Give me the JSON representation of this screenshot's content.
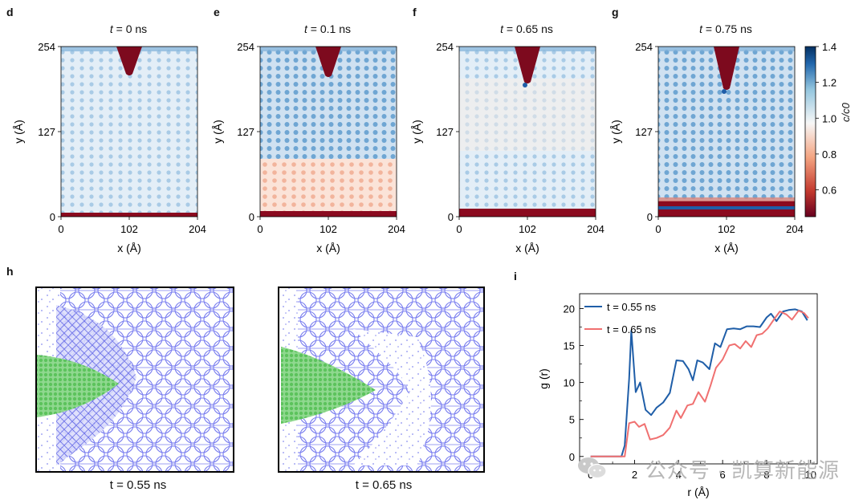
{
  "heatmaps": {
    "panels": [
      {
        "label": "d",
        "time": "0",
        "unit": "ns"
      },
      {
        "label": "e",
        "time": "0.1",
        "unit": "ns"
      },
      {
        "label": "f",
        "time": "0.65",
        "unit": "ns"
      },
      {
        "label": "g",
        "time": "0.75",
        "unit": "ns"
      }
    ],
    "time_symbol": "t",
    "xticks": [
      "0",
      "102",
      "204"
    ],
    "yticks": [
      "0",
      "127",
      "254"
    ],
    "xlabel": "x (Å)",
    "ylabel": "y (Å)",
    "colorbar": {
      "ticks": [
        "1.4",
        "1.2",
        "1.0",
        "0.8",
        "0.6"
      ],
      "label": "c/c0",
      "min": 0.45,
      "max": 1.4
    }
  },
  "snapshots": {
    "label": "h",
    "captions": [
      "t = 0.55 ns",
      "t = 0.65 ns"
    ],
    "colors": {
      "lattice": "#7b7ff0",
      "particles": "#7bd67b"
    }
  },
  "rdf_label": "i",
  "watermark": "公众号 · 凯算新能源",
  "chart_data": [
    {
      "type": "heatmap",
      "panel": "d",
      "title": "t = 0 ns",
      "xlabel": "x (Å)",
      "ylabel": "y (Å)",
      "xlim": [
        0,
        204
      ],
      "ylim": [
        0,
        254
      ],
      "color_scale": "c/c0",
      "clim": [
        0.45,
        1.4
      ]
    },
    {
      "type": "heatmap",
      "panel": "e",
      "title": "t = 0.1 ns",
      "xlabel": "x (Å)",
      "ylabel": "y (Å)",
      "xlim": [
        0,
        204
      ],
      "ylim": [
        0,
        254
      ],
      "color_scale": "c/c0",
      "clim": [
        0.45,
        1.4
      ]
    },
    {
      "type": "heatmap",
      "panel": "f",
      "title": "t = 0.65 ns",
      "xlabel": "x (Å)",
      "ylabel": "y (Å)",
      "xlim": [
        0,
        204
      ],
      "ylim": [
        0,
        254
      ],
      "color_scale": "c/c0",
      "clim": [
        0.45,
        1.4
      ]
    },
    {
      "type": "heatmap",
      "panel": "g",
      "title": "t = 0.75 ns",
      "xlabel": "x (Å)",
      "ylabel": "y (Å)",
      "xlim": [
        0,
        204
      ],
      "ylim": [
        0,
        254
      ],
      "color_scale": "c/c0",
      "clim": [
        0.45,
        1.4
      ]
    },
    {
      "type": "line",
      "panel": "i",
      "xlabel": "r (Å)",
      "ylabel": "g (r)",
      "xlim": [
        -0.5,
        10.3
      ],
      "ylim": [
        -1,
        22
      ],
      "xticks": [
        "0",
        "2",
        "4",
        "6",
        "8",
        "10"
      ],
      "yticks": [
        "0",
        "5",
        "10",
        "15",
        "20"
      ],
      "legend": "top-left",
      "series": [
        {
          "name": "t = 0.55 ns",
          "color": "#1f5ea8",
          "points": [
            [
              0,
              0
            ],
            [
              1.0,
              0
            ],
            [
              1.4,
              0
            ],
            [
              1.55,
              1.5
            ],
            [
              1.75,
              10.5
            ],
            [
              1.85,
              17
            ],
            [
              2.05,
              8.7
            ],
            [
              2.25,
              10
            ],
            [
              2.5,
              6.3
            ],
            [
              2.75,
              5.6
            ],
            [
              3.0,
              6.6
            ],
            [
              3.3,
              7.3
            ],
            [
              3.6,
              8.6
            ],
            [
              3.9,
              13
            ],
            [
              4.2,
              12.9
            ],
            [
              4.45,
              11.8
            ],
            [
              4.65,
              10.3
            ],
            [
              4.85,
              13
            ],
            [
              5.1,
              12.7
            ],
            [
              5.4,
              11.8
            ],
            [
              5.65,
              15.3
            ],
            [
              5.9,
              14.8
            ],
            [
              6.2,
              17.2
            ],
            [
              6.5,
              17.3
            ],
            [
              6.8,
              17.2
            ],
            [
              7.1,
              17.6
            ],
            [
              7.4,
              17.6
            ],
            [
              7.7,
              17.5
            ],
            [
              8.0,
              18.8
            ],
            [
              8.2,
              19.3
            ],
            [
              8.45,
              18.3
            ],
            [
              8.75,
              19.6
            ],
            [
              9.0,
              19.8
            ],
            [
              9.3,
              19.9
            ],
            [
              9.6,
              19.6
            ],
            [
              9.85,
              18.4
            ]
          ]
        },
        {
          "name": "t = 0.65 ns",
          "color": "#f07070",
          "points": [
            [
              0,
              0
            ],
            [
              1.0,
              0
            ],
            [
              1.55,
              0
            ],
            [
              1.75,
              4.5
            ],
            [
              2.0,
              4.7
            ],
            [
              2.2,
              4.0
            ],
            [
              2.45,
              4.4
            ],
            [
              2.7,
              2.3
            ],
            [
              3.0,
              2.5
            ],
            [
              3.3,
              2.9
            ],
            [
              3.6,
              3.9
            ],
            [
              3.9,
              6.2
            ],
            [
              4.1,
              5.2
            ],
            [
              4.4,
              6.9
            ],
            [
              4.65,
              7.1
            ],
            [
              4.9,
              8.7
            ],
            [
              5.2,
              7.4
            ],
            [
              5.45,
              9.6
            ],
            [
              5.7,
              12.0
            ],
            [
              6.0,
              13.1
            ],
            [
              6.3,
              15.0
            ],
            [
              6.55,
              15.2
            ],
            [
              6.8,
              14.6
            ],
            [
              7.05,
              15.6
            ],
            [
              7.3,
              14.8
            ],
            [
              7.55,
              16.4
            ],
            [
              7.8,
              16.6
            ],
            [
              8.05,
              17.3
            ],
            [
              8.35,
              18.6
            ],
            [
              8.6,
              19.6
            ],
            [
              8.9,
              19.2
            ],
            [
              9.15,
              18.5
            ],
            [
              9.45,
              19.7
            ],
            [
              9.7,
              19.4
            ],
            [
              9.9,
              18.7
            ]
          ]
        }
      ]
    }
  ]
}
